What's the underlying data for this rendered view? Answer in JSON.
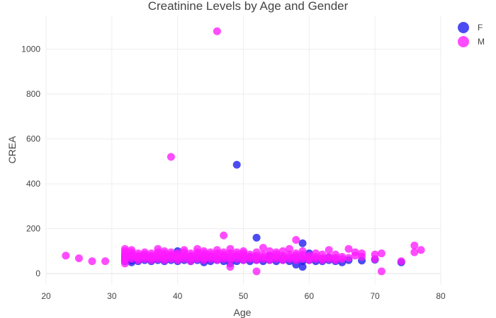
{
  "chart_data": {
    "type": "scatter",
    "title": "Creatinine Levels by Age and Gender",
    "xlabel": "Age",
    "ylabel": "CREA",
    "xlim": [
      20,
      80
    ],
    "ylim": [
      -50,
      1150
    ],
    "xticks": [
      20,
      30,
      40,
      50,
      60,
      70,
      80
    ],
    "yticks": [
      0,
      200,
      400,
      600,
      800,
      1000
    ],
    "grid": true,
    "legend_position": "top-right",
    "series": [
      {
        "name": "F",
        "color": "#1a1aee",
        "points": [
          [
            32,
            55
          ],
          [
            32,
            65
          ],
          [
            32,
            75
          ],
          [
            32,
            85
          ],
          [
            33,
            50
          ],
          [
            33,
            60
          ],
          [
            33,
            70
          ],
          [
            33,
            80
          ],
          [
            34,
            55
          ],
          [
            34,
            65
          ],
          [
            34,
            75
          ],
          [
            35,
            60
          ],
          [
            35,
            70
          ],
          [
            35,
            80
          ],
          [
            36,
            55
          ],
          [
            36,
            65
          ],
          [
            36,
            75
          ],
          [
            37,
            60
          ],
          [
            37,
            70
          ],
          [
            38,
            55
          ],
          [
            38,
            65
          ],
          [
            38,
            75
          ],
          [
            39,
            60
          ],
          [
            39,
            70
          ],
          [
            39,
            80
          ],
          [
            40,
            55
          ],
          [
            40,
            65
          ],
          [
            40,
            75
          ],
          [
            40,
            100
          ],
          [
            41,
            60
          ],
          [
            41,
            70
          ],
          [
            42,
            55
          ],
          [
            42,
            65
          ],
          [
            42,
            75
          ],
          [
            43,
            60
          ],
          [
            43,
            70
          ],
          [
            44,
            50
          ],
          [
            44,
            60
          ],
          [
            44,
            70
          ],
          [
            44,
            80
          ],
          [
            45,
            55
          ],
          [
            45,
            65
          ],
          [
            45,
            75
          ],
          [
            46,
            60
          ],
          [
            46,
            70
          ],
          [
            47,
            55
          ],
          [
            47,
            65
          ],
          [
            47,
            75
          ],
          [
            48,
            60
          ],
          [
            48,
            70
          ],
          [
            48,
            45
          ],
          [
            49,
            485
          ],
          [
            49,
            55
          ],
          [
            49,
            65
          ],
          [
            49,
            75
          ],
          [
            50,
            60
          ],
          [
            50,
            70
          ],
          [
            51,
            55
          ],
          [
            51,
            65
          ],
          [
            51,
            75
          ],
          [
            52,
            160
          ],
          [
            52,
            60
          ],
          [
            52,
            70
          ],
          [
            53,
            55
          ],
          [
            53,
            65
          ],
          [
            54,
            60
          ],
          [
            54,
            70
          ],
          [
            54,
            80
          ],
          [
            55,
            55
          ],
          [
            55,
            65
          ],
          [
            56,
            60
          ],
          [
            56,
            70
          ],
          [
            57,
            55
          ],
          [
            57,
            65
          ],
          [
            58,
            40
          ],
          [
            58,
            60
          ],
          [
            58,
            70
          ],
          [
            59,
            135
          ],
          [
            59,
            30
          ],
          [
            59,
            55
          ],
          [
            59,
            65
          ],
          [
            60,
            60
          ],
          [
            60,
            70
          ],
          [
            60,
            90
          ],
          [
            61,
            55
          ],
          [
            61,
            65
          ],
          [
            62,
            55
          ],
          [
            62,
            65
          ],
          [
            63,
            60
          ],
          [
            63,
            70
          ],
          [
            64,
            55
          ],
          [
            64,
            65
          ],
          [
            65,
            50
          ],
          [
            66,
            60
          ],
          [
            68,
            58
          ],
          [
            70,
            62
          ],
          [
            74,
            50
          ]
        ]
      },
      {
        "name": "M",
        "color": "#ff1aff",
        "points": [
          [
            23,
            80
          ],
          [
            25,
            68
          ],
          [
            27,
            55
          ],
          [
            29,
            55
          ],
          [
            32,
            45
          ],
          [
            32,
            60
          ],
          [
            32,
            70
          ],
          [
            32,
            80
          ],
          [
            32,
            90
          ],
          [
            32,
            100
          ],
          [
            32,
            110
          ],
          [
            33,
            65
          ],
          [
            33,
            75
          ],
          [
            33,
            85
          ],
          [
            33,
            95
          ],
          [
            33,
            105
          ],
          [
            34,
            60
          ],
          [
            34,
            70
          ],
          [
            34,
            80
          ],
          [
            34,
            90
          ],
          [
            35,
            65
          ],
          [
            35,
            75
          ],
          [
            35,
            85
          ],
          [
            35,
            95
          ],
          [
            36,
            60
          ],
          [
            36,
            70
          ],
          [
            36,
            80
          ],
          [
            36,
            90
          ],
          [
            37,
            65
          ],
          [
            37,
            75
          ],
          [
            37,
            85
          ],
          [
            37,
            95
          ],
          [
            37,
            110
          ],
          [
            38,
            60
          ],
          [
            38,
            70
          ],
          [
            38,
            80
          ],
          [
            38,
            90
          ],
          [
            38,
            100
          ],
          [
            39,
            520
          ],
          [
            39,
            65
          ],
          [
            39,
            75
          ],
          [
            39,
            85
          ],
          [
            39,
            95
          ],
          [
            40,
            60
          ],
          [
            40,
            70
          ],
          [
            40,
            80
          ],
          [
            40,
            90
          ],
          [
            41,
            65
          ],
          [
            41,
            75
          ],
          [
            41,
            85
          ],
          [
            41,
            95
          ],
          [
            41,
            105
          ],
          [
            42,
            55
          ],
          [
            42,
            70
          ],
          [
            42,
            80
          ],
          [
            42,
            90
          ],
          [
            43,
            65
          ],
          [
            43,
            75
          ],
          [
            43,
            85
          ],
          [
            43,
            95
          ],
          [
            43,
            110
          ],
          [
            44,
            60
          ],
          [
            44,
            70
          ],
          [
            44,
            80
          ],
          [
            44,
            90
          ],
          [
            44,
            100
          ],
          [
            45,
            65
          ],
          [
            45,
            75
          ],
          [
            45,
            85
          ],
          [
            45,
            95
          ],
          [
            46,
            1080
          ],
          [
            46,
            60
          ],
          [
            46,
            70
          ],
          [
            46,
            80
          ],
          [
            46,
            90
          ],
          [
            46,
            105
          ],
          [
            47,
            170
          ],
          [
            47,
            65
          ],
          [
            47,
            75
          ],
          [
            47,
            85
          ],
          [
            47,
            95
          ],
          [
            48,
            30
          ],
          [
            48,
            60
          ],
          [
            48,
            70
          ],
          [
            48,
            80
          ],
          [
            48,
            90
          ],
          [
            48,
            110
          ],
          [
            49,
            65
          ],
          [
            49,
            75
          ],
          [
            49,
            85
          ],
          [
            49,
            95
          ],
          [
            50,
            60
          ],
          [
            50,
            70
          ],
          [
            50,
            80
          ],
          [
            50,
            90
          ],
          [
            50,
            100
          ],
          [
            51,
            65
          ],
          [
            51,
            75
          ],
          [
            51,
            85
          ],
          [
            52,
            10
          ],
          [
            52,
            60
          ],
          [
            52,
            70
          ],
          [
            52,
            80
          ],
          [
            52,
            95
          ],
          [
            53,
            65
          ],
          [
            53,
            75
          ],
          [
            53,
            85
          ],
          [
            53,
            115
          ],
          [
            54,
            60
          ],
          [
            54,
            70
          ],
          [
            54,
            80
          ],
          [
            54,
            100
          ],
          [
            55,
            65
          ],
          [
            55,
            75
          ],
          [
            55,
            85
          ],
          [
            55,
            95
          ],
          [
            56,
            60
          ],
          [
            56,
            70
          ],
          [
            56,
            80
          ],
          [
            56,
            100
          ],
          [
            57,
            65
          ],
          [
            57,
            75
          ],
          [
            57,
            85
          ],
          [
            57,
            110
          ],
          [
            58,
            150
          ],
          [
            58,
            60
          ],
          [
            58,
            70
          ],
          [
            58,
            80
          ],
          [
            58,
            90
          ],
          [
            59,
            65
          ],
          [
            59,
            75
          ],
          [
            59,
            85
          ],
          [
            59,
            100
          ],
          [
            60,
            60
          ],
          [
            60,
            70
          ],
          [
            60,
            80
          ],
          [
            61,
            65
          ],
          [
            61,
            75
          ],
          [
            61,
            90
          ],
          [
            62,
            60
          ],
          [
            62,
            70
          ],
          [
            62,
            85
          ],
          [
            63,
            65
          ],
          [
            63,
            75
          ],
          [
            63,
            105
          ],
          [
            64,
            60
          ],
          [
            64,
            70
          ],
          [
            64,
            85
          ],
          [
            65,
            65
          ],
          [
            65,
            75
          ],
          [
            66,
            70
          ],
          [
            66,
            110
          ],
          [
            67,
            80
          ],
          [
            67,
            95
          ],
          [
            68,
            75
          ],
          [
            68,
            90
          ],
          [
            70,
            85
          ],
          [
            70,
            65
          ],
          [
            71,
            90
          ],
          [
            71,
            10
          ],
          [
            74,
            55
          ],
          [
            76,
            125
          ],
          [
            76,
            95
          ],
          [
            77,
            105
          ]
        ]
      }
    ]
  }
}
